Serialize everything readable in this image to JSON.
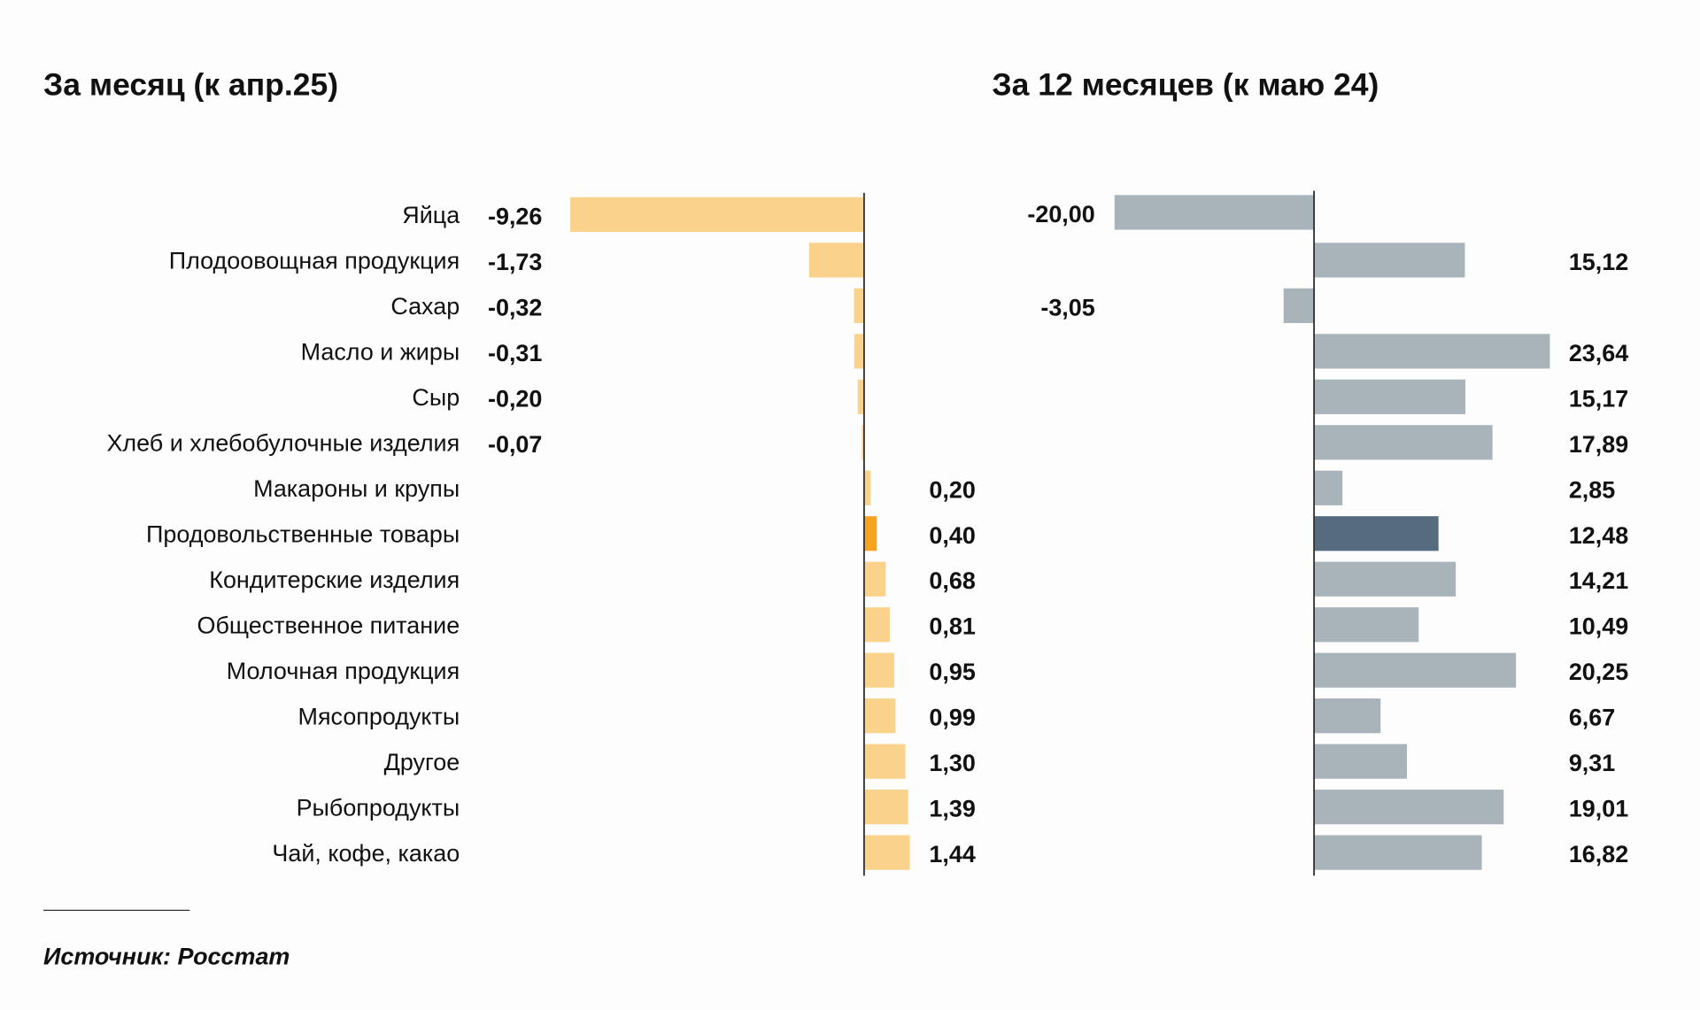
{
  "chart_data": [
    {
      "type": "bar",
      "orientation": "horizontal",
      "title": "За месяц (к апр.25)",
      "categories": [
        "Яйца",
        "Плодоовощная продукция",
        "Сахар",
        "Масло и жиры",
        "Сыр",
        "Хлеб и хлебобулочные изделия",
        "Макароны и крупы",
        "Продовольственные товары",
        "Кондитерские изделия",
        "Общественное питание",
        "Молочная продукция",
        "Мясопродукты",
        "Другое",
        "Рыбопродукты",
        "Чай, кофе, какао"
      ],
      "values": [
        -9.26,
        -1.73,
        -0.32,
        -0.31,
        -0.2,
        -0.07,
        0.2,
        0.4,
        0.68,
        0.81,
        0.95,
        0.99,
        1.3,
        1.39,
        1.44
      ],
      "labels": [
        "-9,26",
        "-1,73",
        "-0,32",
        "-0,31",
        "-0,20",
        "-0,07",
        "0,20",
        "0,40",
        "0,68",
        "0,81",
        "0,95",
        "0,99",
        "1,30",
        "1,39",
        "1,44"
      ],
      "highlight_index": 7,
      "color": "#FAD28C",
      "highlight_color": "#F8A21E",
      "xlim": [
        -9.26,
        3.6
      ]
    },
    {
      "type": "bar",
      "orientation": "horizontal",
      "title": "За 12 месяцев (к маю 24)",
      "values": [
        -20.0,
        15.12,
        -3.05,
        23.64,
        15.17,
        17.89,
        2.85,
        12.48,
        14.21,
        10.49,
        20.25,
        6.67,
        9.31,
        19.01,
        16.82
      ],
      "labels": [
        "-20,00",
        "15,12",
        "-3,05",
        "23,64",
        "15,17",
        "17,89",
        "2,85",
        "12,48",
        "14,21",
        "10,49",
        "20,25",
        "6,67",
        "9,31",
        "19,01",
        "16,82"
      ],
      "highlight_index": 7,
      "color": "#A9B3BA",
      "highlight_color": "#566A80",
      "xlim": [
        -20,
        24
      ]
    }
  ],
  "source": "Источник: Росстат"
}
